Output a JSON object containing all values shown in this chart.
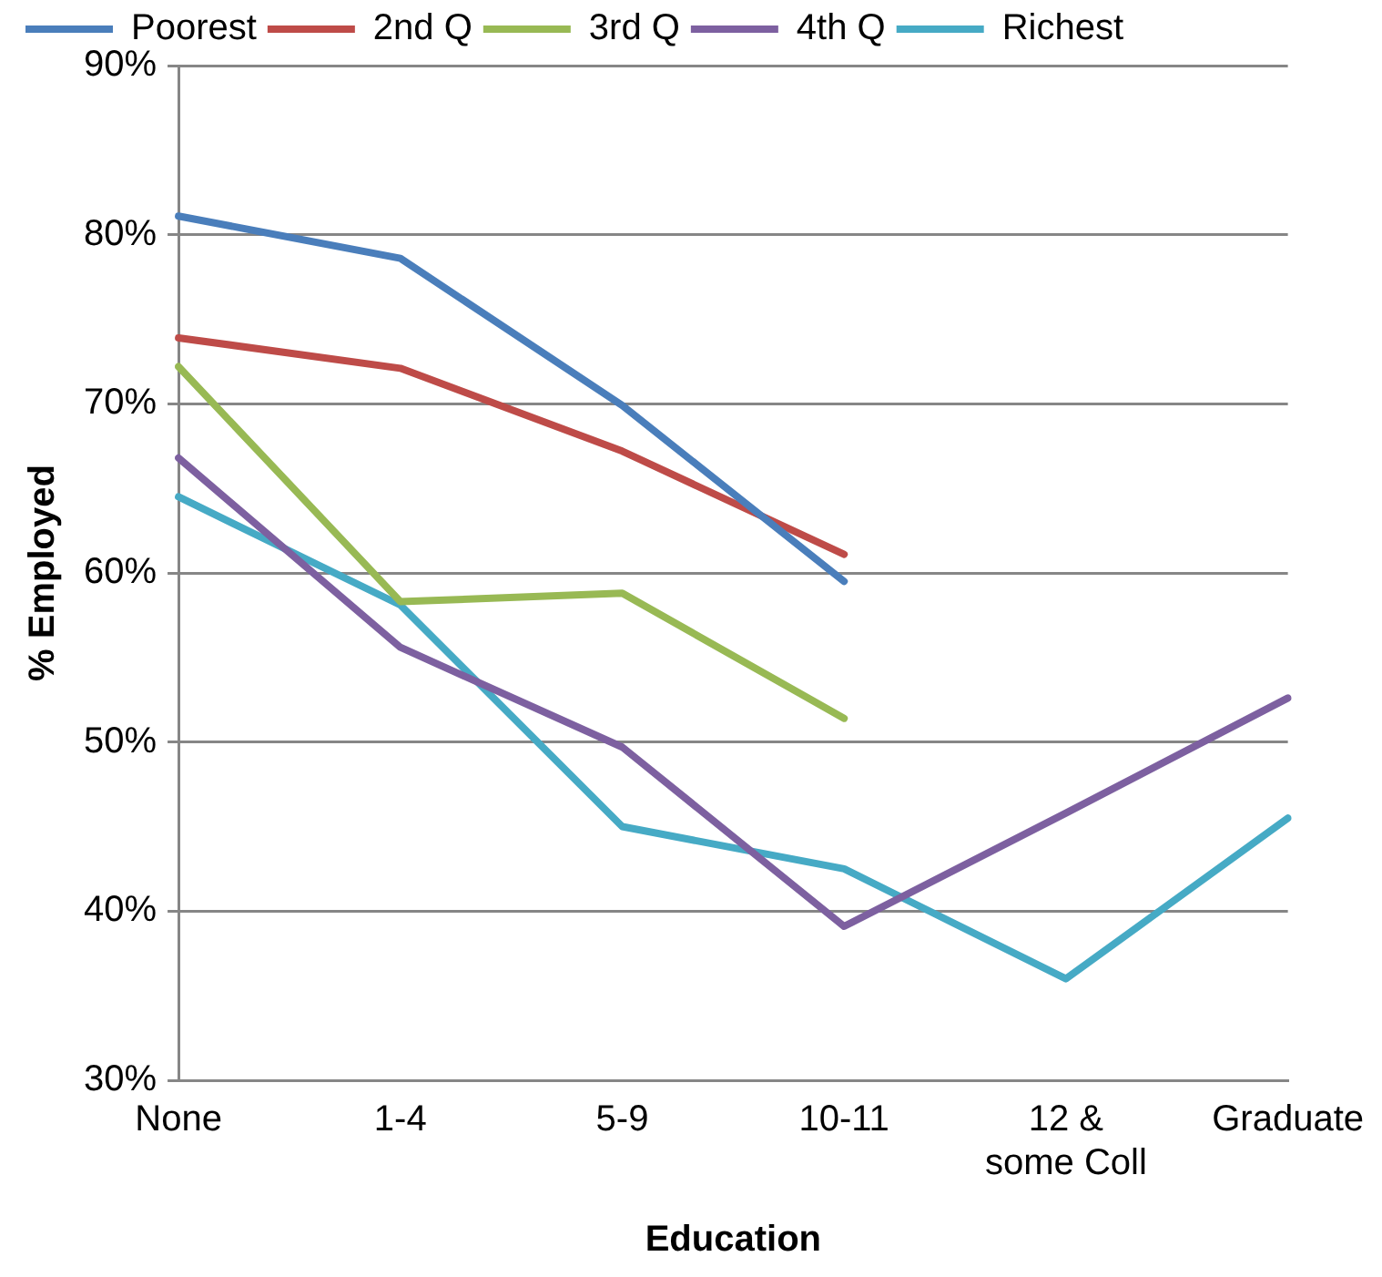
{
  "chart_data": {
    "type": "line",
    "xlabel": "Education",
    "ylabel": "% Employed",
    "categories": [
      "None",
      "1-4",
      "5-9",
      "10-11",
      "12 &\nsome Coll",
      "Graduate"
    ],
    "series": [
      {
        "name": "Poorest",
        "color": "#4a7ebb",
        "values": [
          81.1,
          78.6,
          69.9,
          59.5,
          null,
          null
        ]
      },
      {
        "name": "2nd Q",
        "color": "#be4b48",
        "values": [
          73.9,
          72.1,
          67.2,
          61.1,
          null,
          null
        ]
      },
      {
        "name": "3rd Q",
        "color": "#98b954",
        "values": [
          72.2,
          58.3,
          58.8,
          51.4,
          null,
          null
        ]
      },
      {
        "name": "4th Q",
        "color": "#7d60a0",
        "values": [
          66.8,
          55.6,
          49.7,
          39.1,
          45.8,
          52.6
        ]
      },
      {
        "name": "Richest",
        "color": "#46aac5",
        "values": [
          64.5,
          58.1,
          45.0,
          42.5,
          36.0,
          45.5
        ]
      }
    ],
    "ylim": [
      30,
      90
    ],
    "yticks": [
      {
        "value": 30,
        "label": "30%"
      },
      {
        "value": 40,
        "label": "40%"
      },
      {
        "value": 50,
        "label": "50%"
      },
      {
        "value": 60,
        "label": "60%"
      },
      {
        "value": 70,
        "label": "70%"
      },
      {
        "value": 80,
        "label": "80%"
      },
      {
        "value": 90,
        "label": "90%"
      }
    ],
    "grid": "y",
    "legend": "top",
    "marker": "none",
    "line_style": "solid"
  }
}
